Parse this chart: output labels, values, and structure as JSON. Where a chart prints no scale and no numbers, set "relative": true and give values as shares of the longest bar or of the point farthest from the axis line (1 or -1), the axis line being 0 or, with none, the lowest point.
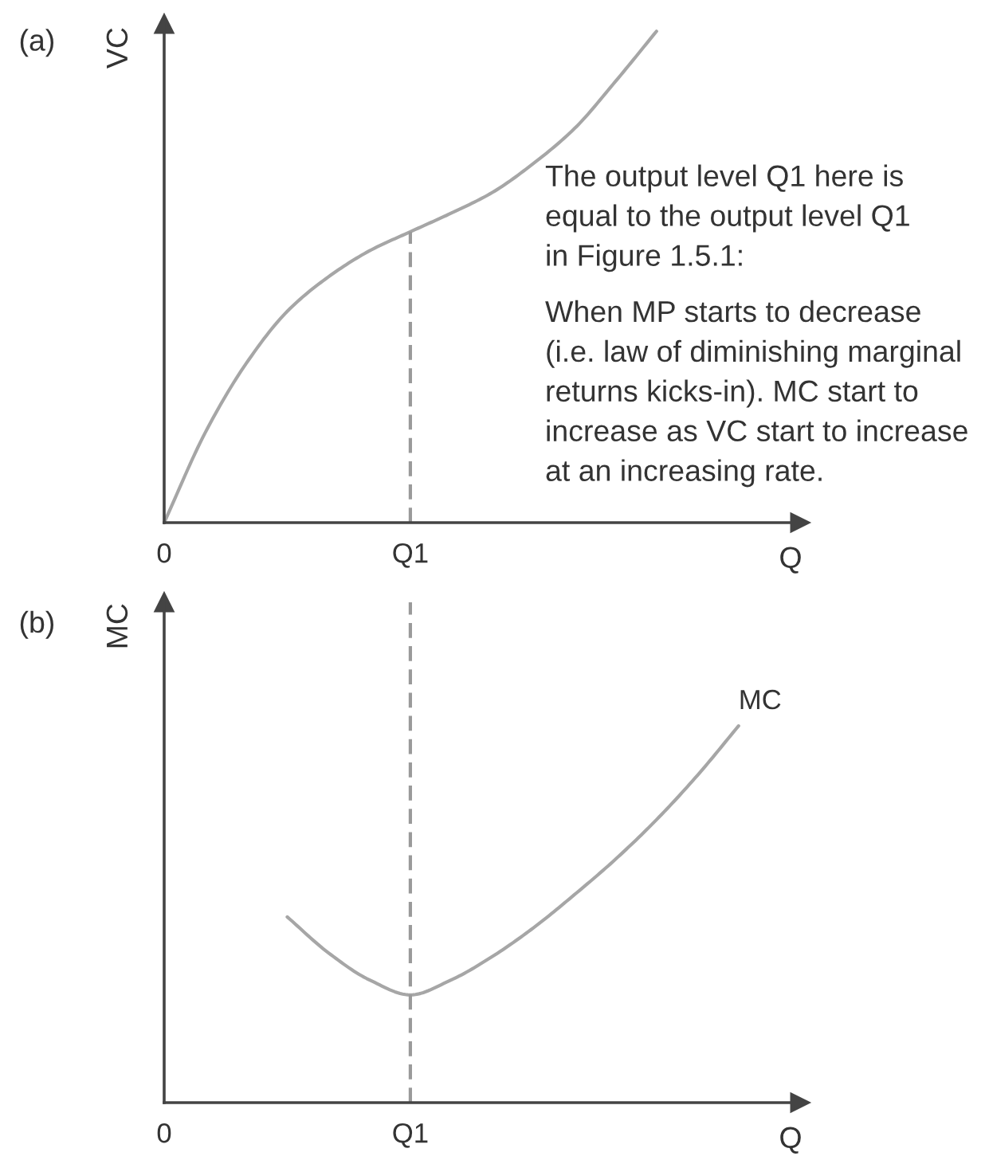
{
  "chart_data": [
    {
      "type": "line",
      "title": "(a)",
      "ylabel": "VC",
      "xlabel": "Q",
      "relative": true,
      "categories": [
        "0",
        null,
        null,
        null,
        null,
        null,
        "Q1",
        null,
        null,
        null,
        null,
        null,
        null,
        null,
        null
      ],
      "series": [
        {
          "color": "#a6a6a6",
          "values": [
            0,
            0.183,
            0.324,
            0.43,
            0.5,
            0.553,
            0.592,
            0.63,
            0.672,
            0.731,
            0.802,
            0.898,
            1.0,
            null,
            null
          ]
        },
        {
          "color": "#9a9a9a",
          "line_style": "dashed",
          "x": [
            "Q1",
            "Q1"
          ],
          "values": [
            0,
            0.592
          ]
        }
      ],
      "annotations": [
        "The output level Q1 here is\nequal to the output level Q1\nin Figure 1.5.1:",
        "When MP starts to decrease\n(i.e. law of diminishing marginal\nreturns kicks-in). MC start to\nincrease as VC start to increase\nat an increasing rate."
      ]
    },
    {
      "type": "line",
      "title": "(b)",
      "ylabel": "MC",
      "xlabel": "Q",
      "relative": true,
      "categories": [
        "0",
        null,
        null,
        null,
        null,
        null,
        "Q1",
        null,
        null,
        null,
        null,
        null,
        null,
        null,
        null
      ],
      "series": [
        {
          "name": "MC",
          "color": "#a6a6a6",
          "values": [
            null,
            null,
            null,
            0.493,
            0.398,
            0.326,
            0.286,
            0.326,
            0.388,
            0.464,
            0.552,
            0.646,
            0.751,
            0.869,
            1.0
          ]
        }
      ],
      "ref_lines": [
        {
          "axis": "x",
          "value": "Q1",
          "color": "#9a9a9a",
          "line_style": "dashed"
        }
      ]
    }
  ]
}
